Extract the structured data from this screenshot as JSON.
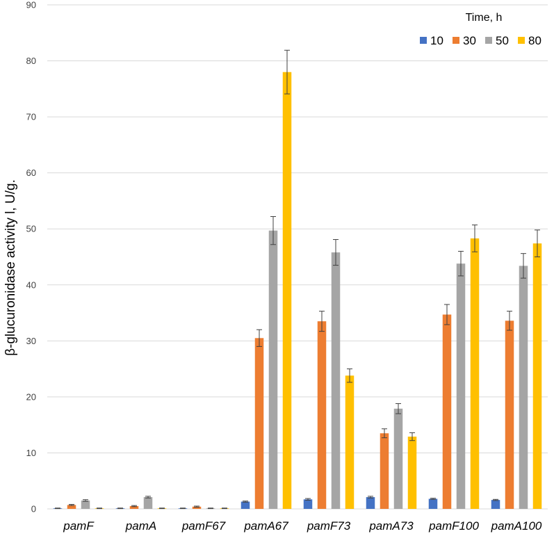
{
  "chart_data": {
    "type": "bar",
    "title": "",
    "xlabel": "",
    "ylabel": "β-glucuronidase activity l, U/g.",
    "ylim": [
      0,
      90
    ],
    "yticks": [
      0,
      10,
      20,
      30,
      40,
      50,
      60,
      70,
      80,
      90
    ],
    "grid": true,
    "legend_title": "Time, h",
    "legend_position": "top-right",
    "categories": [
      "pamF",
      "pamA",
      "pamF67",
      "pamA67",
      "pamF73",
      "pamA73",
      "pamF100",
      "pamA100"
    ],
    "series": [
      {
        "name": "10",
        "color": "#4472c4",
        "values": [
          0.1,
          0.1,
          0.1,
          1.3,
          1.7,
          2.1,
          1.8,
          1.6
        ],
        "errors": [
          0.05,
          0.05,
          0.05,
          0.1,
          0.15,
          0.15,
          0.1,
          0.1
        ]
      },
      {
        "name": "30",
        "color": "#ed7d31",
        "values": [
          0.7,
          0.5,
          0.4,
          30.5,
          33.5,
          13.5,
          34.7,
          33.6
        ],
        "errors": [
          0.1,
          0.1,
          0.1,
          1.5,
          1.8,
          0.8,
          1.8,
          1.7
        ]
      },
      {
        "name": "50",
        "color": "#a5a5a5",
        "values": [
          1.5,
          2.1,
          0.1,
          49.7,
          45.8,
          17.9,
          43.8,
          43.4
        ],
        "errors": [
          0.15,
          0.15,
          0.05,
          2.5,
          2.3,
          0.9,
          2.2,
          2.2
        ]
      },
      {
        "name": "80",
        "color": "#ffc000",
        "values": [
          0.1,
          0.1,
          0.1,
          78.0,
          23.8,
          12.9,
          48.3,
          47.4
        ],
        "errors": [
          0.05,
          0.05,
          0.05,
          3.9,
          1.2,
          0.7,
          2.4,
          2.4
        ]
      }
    ]
  }
}
